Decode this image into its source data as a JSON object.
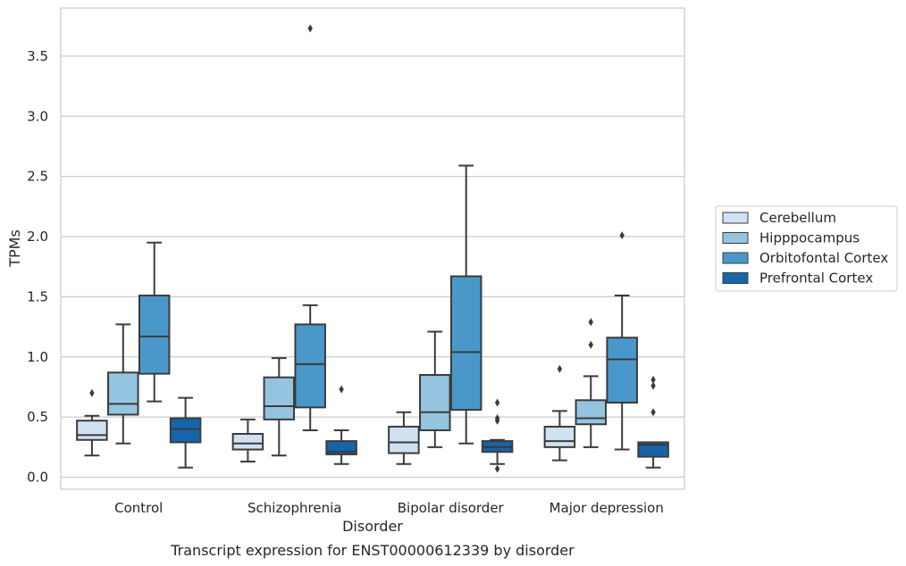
{
  "chart_data": {
    "type": "boxplot",
    "title": "Transcript expression for ENST00000612339 by disorder",
    "xlabel": "Disorder",
    "ylabel": "TPMs",
    "ylim": [
      -0.1,
      3.9
    ],
    "yticks": [
      "0.0",
      "0.5",
      "1.0",
      "1.5",
      "2.0",
      "2.5",
      "3.0",
      "3.5"
    ],
    "grid": "horizontal",
    "legend_position": "right",
    "categories": [
      "Control",
      "Schizophrenia",
      "Bipolar disorder",
      "Major depression"
    ],
    "series": [
      {
        "name": "Cerebellum",
        "color": "#d0e1f2",
        "boxes": [
          {
            "whislo": 0.18,
            "q1": 0.31,
            "med": 0.35,
            "q3": 0.47,
            "whishi": 0.51,
            "fliers": [
              0.7
            ]
          },
          {
            "whislo": 0.13,
            "q1": 0.23,
            "med": 0.28,
            "q3": 0.36,
            "whishi": 0.48,
            "fliers": []
          },
          {
            "whislo": 0.11,
            "q1": 0.2,
            "med": 0.29,
            "q3": 0.42,
            "whishi": 0.54,
            "fliers": []
          },
          {
            "whislo": 0.14,
            "q1": 0.25,
            "med": 0.3,
            "q3": 0.42,
            "whishi": 0.55,
            "fliers": [
              0.9
            ]
          }
        ]
      },
      {
        "name": "Hipppocampus",
        "color": "#94c4df",
        "boxes": [
          {
            "whislo": 0.28,
            "q1": 0.52,
            "med": 0.61,
            "q3": 0.87,
            "whishi": 1.27,
            "fliers": []
          },
          {
            "whislo": 0.18,
            "q1": 0.48,
            "med": 0.59,
            "q3": 0.83,
            "whishi": 0.99,
            "fliers": []
          },
          {
            "whislo": 0.25,
            "q1": 0.39,
            "med": 0.54,
            "q3": 0.85,
            "whishi": 1.21,
            "fliers": []
          },
          {
            "whislo": 0.25,
            "q1": 0.44,
            "med": 0.49,
            "q3": 0.64,
            "whishi": 0.84,
            "fliers": [
              1.1,
              1.29
            ]
          }
        ]
      },
      {
        "name": "Orbitofontal Cortex",
        "color": "#4a98c9",
        "boxes": [
          {
            "whislo": 0.63,
            "q1": 0.86,
            "med": 1.17,
            "q3": 1.51,
            "whishi": 1.95,
            "fliers": []
          },
          {
            "whislo": 0.39,
            "q1": 0.58,
            "med": 0.94,
            "q3": 1.27,
            "whishi": 1.43,
            "fliers": [
              3.73
            ]
          },
          {
            "whislo": 0.28,
            "q1": 0.56,
            "med": 1.04,
            "q3": 1.67,
            "whishi": 2.59,
            "fliers": []
          },
          {
            "whislo": 0.23,
            "q1": 0.62,
            "med": 0.98,
            "q3": 1.16,
            "whishi": 1.51,
            "fliers": [
              2.01
            ]
          }
        ]
      },
      {
        "name": "Prefrontal Cortex",
        "color": "#1764ab",
        "boxes": [
          {
            "whislo": 0.08,
            "q1": 0.29,
            "med": 0.4,
            "q3": 0.49,
            "whishi": 0.66,
            "fliers": []
          },
          {
            "whislo": 0.11,
            "q1": 0.19,
            "med": 0.21,
            "q3": 0.3,
            "whishi": 0.39,
            "fliers": [
              0.73
            ]
          },
          {
            "whislo": 0.11,
            "q1": 0.21,
            "med": 0.25,
            "q3": 0.3,
            "whishi": 0.31,
            "fliers": [
              0.07,
              0.47,
              0.49,
              0.62
            ]
          },
          {
            "whislo": 0.08,
            "q1": 0.17,
            "med": 0.27,
            "q3": 0.29,
            "whishi": 0.29,
            "fliers": [
              0.54,
              0.76,
              0.81
            ]
          }
        ]
      }
    ]
  }
}
